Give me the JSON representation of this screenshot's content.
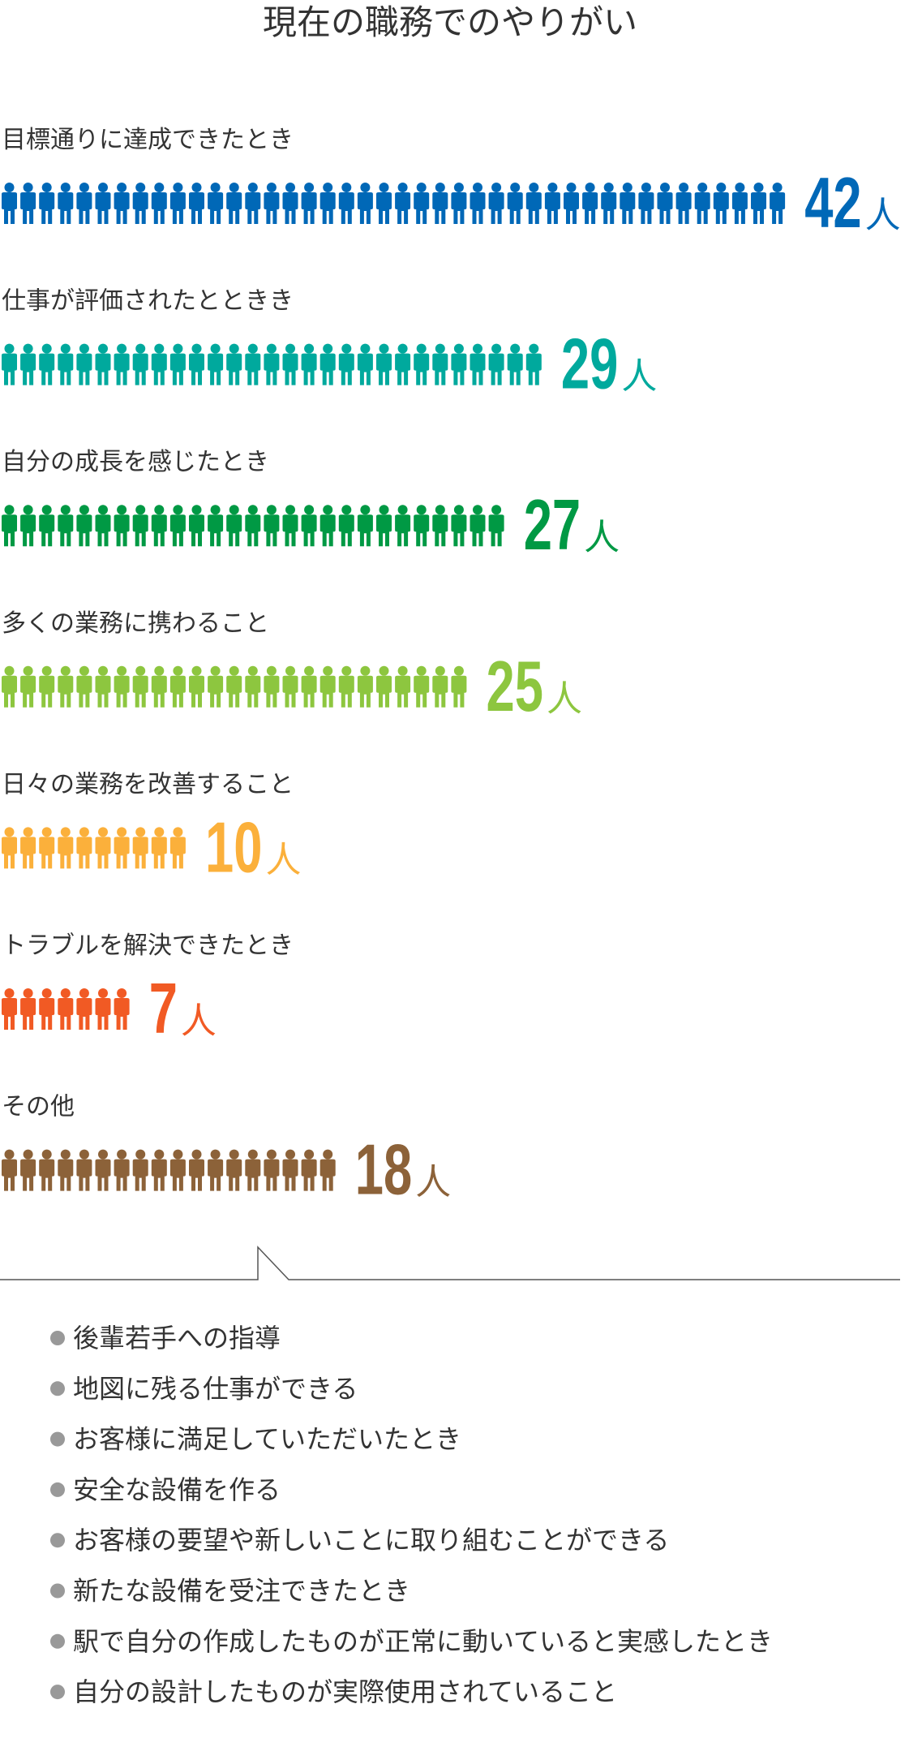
{
  "chart_data": {
    "type": "pictogram",
    "title": "現在の職務でのやりがい",
    "unit": "人",
    "categories": [
      "目標通りに達成できたとき",
      "仕事が評価されたとときき",
      "自分の成長を感じたとき",
      "多くの業務に携わること",
      "日々の業務を改善すること",
      "トラブルを解決できたとき",
      "その他"
    ],
    "values": [
      42,
      29,
      27,
      25,
      10,
      7,
      18
    ],
    "colors": [
      "#0068b7",
      "#00a99d",
      "#009944",
      "#8dc63f",
      "#fbb03b",
      "#f15a24",
      "#8c6239"
    ],
    "other_details": [
      "後輩若手への指導",
      "地図に残る仕事ができる",
      "お客様に満足していただいたとき",
      "安全な設備を作る",
      "お客様の要望や新しいことに取り組むことができる",
      "新たな設備を受注できたとき",
      "駅で自分の作成したものが正常に動いていると実感したとき",
      "自分の設計したものが実際使用されていること"
    ]
  }
}
